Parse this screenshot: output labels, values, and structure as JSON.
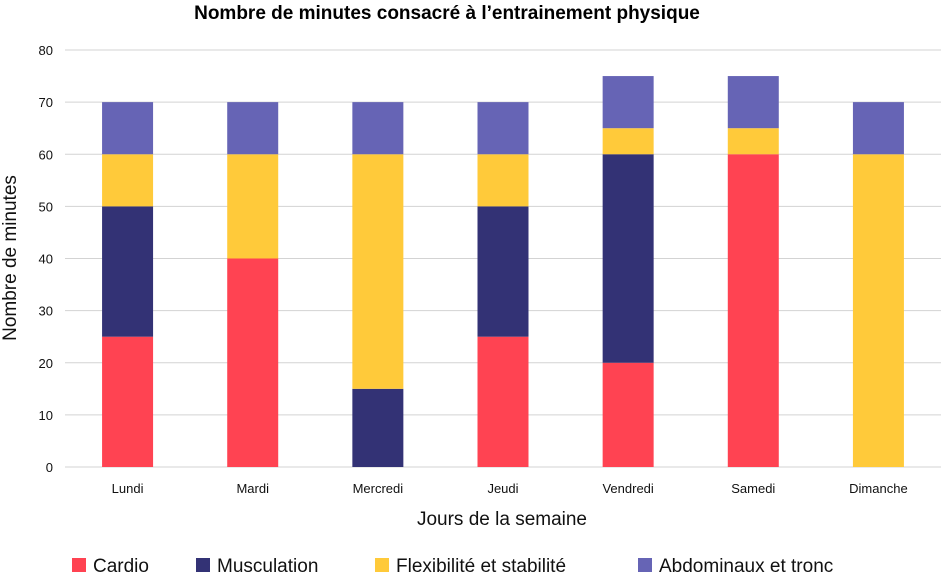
{
  "chart_data": {
    "type": "bar",
    "stacked": true,
    "title": "Nombre de minutes consacré à l’entrainement physique",
    "xlabel": "Jours de la semaine",
    "ylabel": "Nombre de minutes",
    "ylim": [
      0,
      80
    ],
    "yticks": [
      "0",
      "10",
      "20",
      "30",
      "40",
      "50",
      "60",
      "70",
      "80"
    ],
    "grid": true,
    "legend_position": "bottom",
    "categories": [
      "Lundi",
      "Mardi",
      "Mercredi",
      "Jeudi",
      "Vendredi",
      "Samedi",
      "Dimanche"
    ],
    "series": [
      {
        "name": "Cardio",
        "color": "#ff4352",
        "values": [
          25,
          40,
          0,
          25,
          20,
          60,
          0
        ]
      },
      {
        "name": "Musculation",
        "color": "#333275",
        "values": [
          25,
          0,
          15,
          25,
          40,
          0,
          0
        ]
      },
      {
        "name": "Flexibilité et stabilité",
        "color": "#ffca3a",
        "values": [
          10,
          20,
          45,
          10,
          5,
          5,
          60
        ]
      },
      {
        "name": "Abdominaux et tronc",
        "color": "#6664b5",
        "values": [
          10,
          10,
          10,
          10,
          10,
          10,
          10
        ]
      }
    ]
  }
}
